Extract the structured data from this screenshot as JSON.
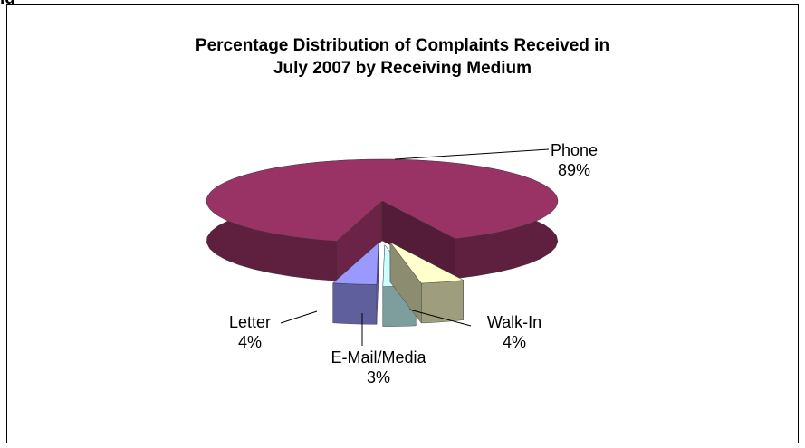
{
  "chart_data": {
    "type": "pie",
    "title_lines": [
      "Percentage Distribution of Complaints Received in",
      "July 2007 by Receiving Medium"
    ],
    "slices": [
      {
        "name": "Phone",
        "value": 89,
        "label": "89%",
        "color": "#993366"
      },
      {
        "name": "Walk-In",
        "value": 4,
        "label": "4%",
        "color": "#FFFFCC"
      },
      {
        "name": "E-Mail/Media",
        "value": 3,
        "label": "3%",
        "color": "#CCFFFF"
      },
      {
        "name": "Letter",
        "value": 4,
        "label": "4%",
        "color": "#9999FF"
      }
    ],
    "style": "3d-exploded"
  },
  "page": {
    "fragment_text": "ig"
  }
}
